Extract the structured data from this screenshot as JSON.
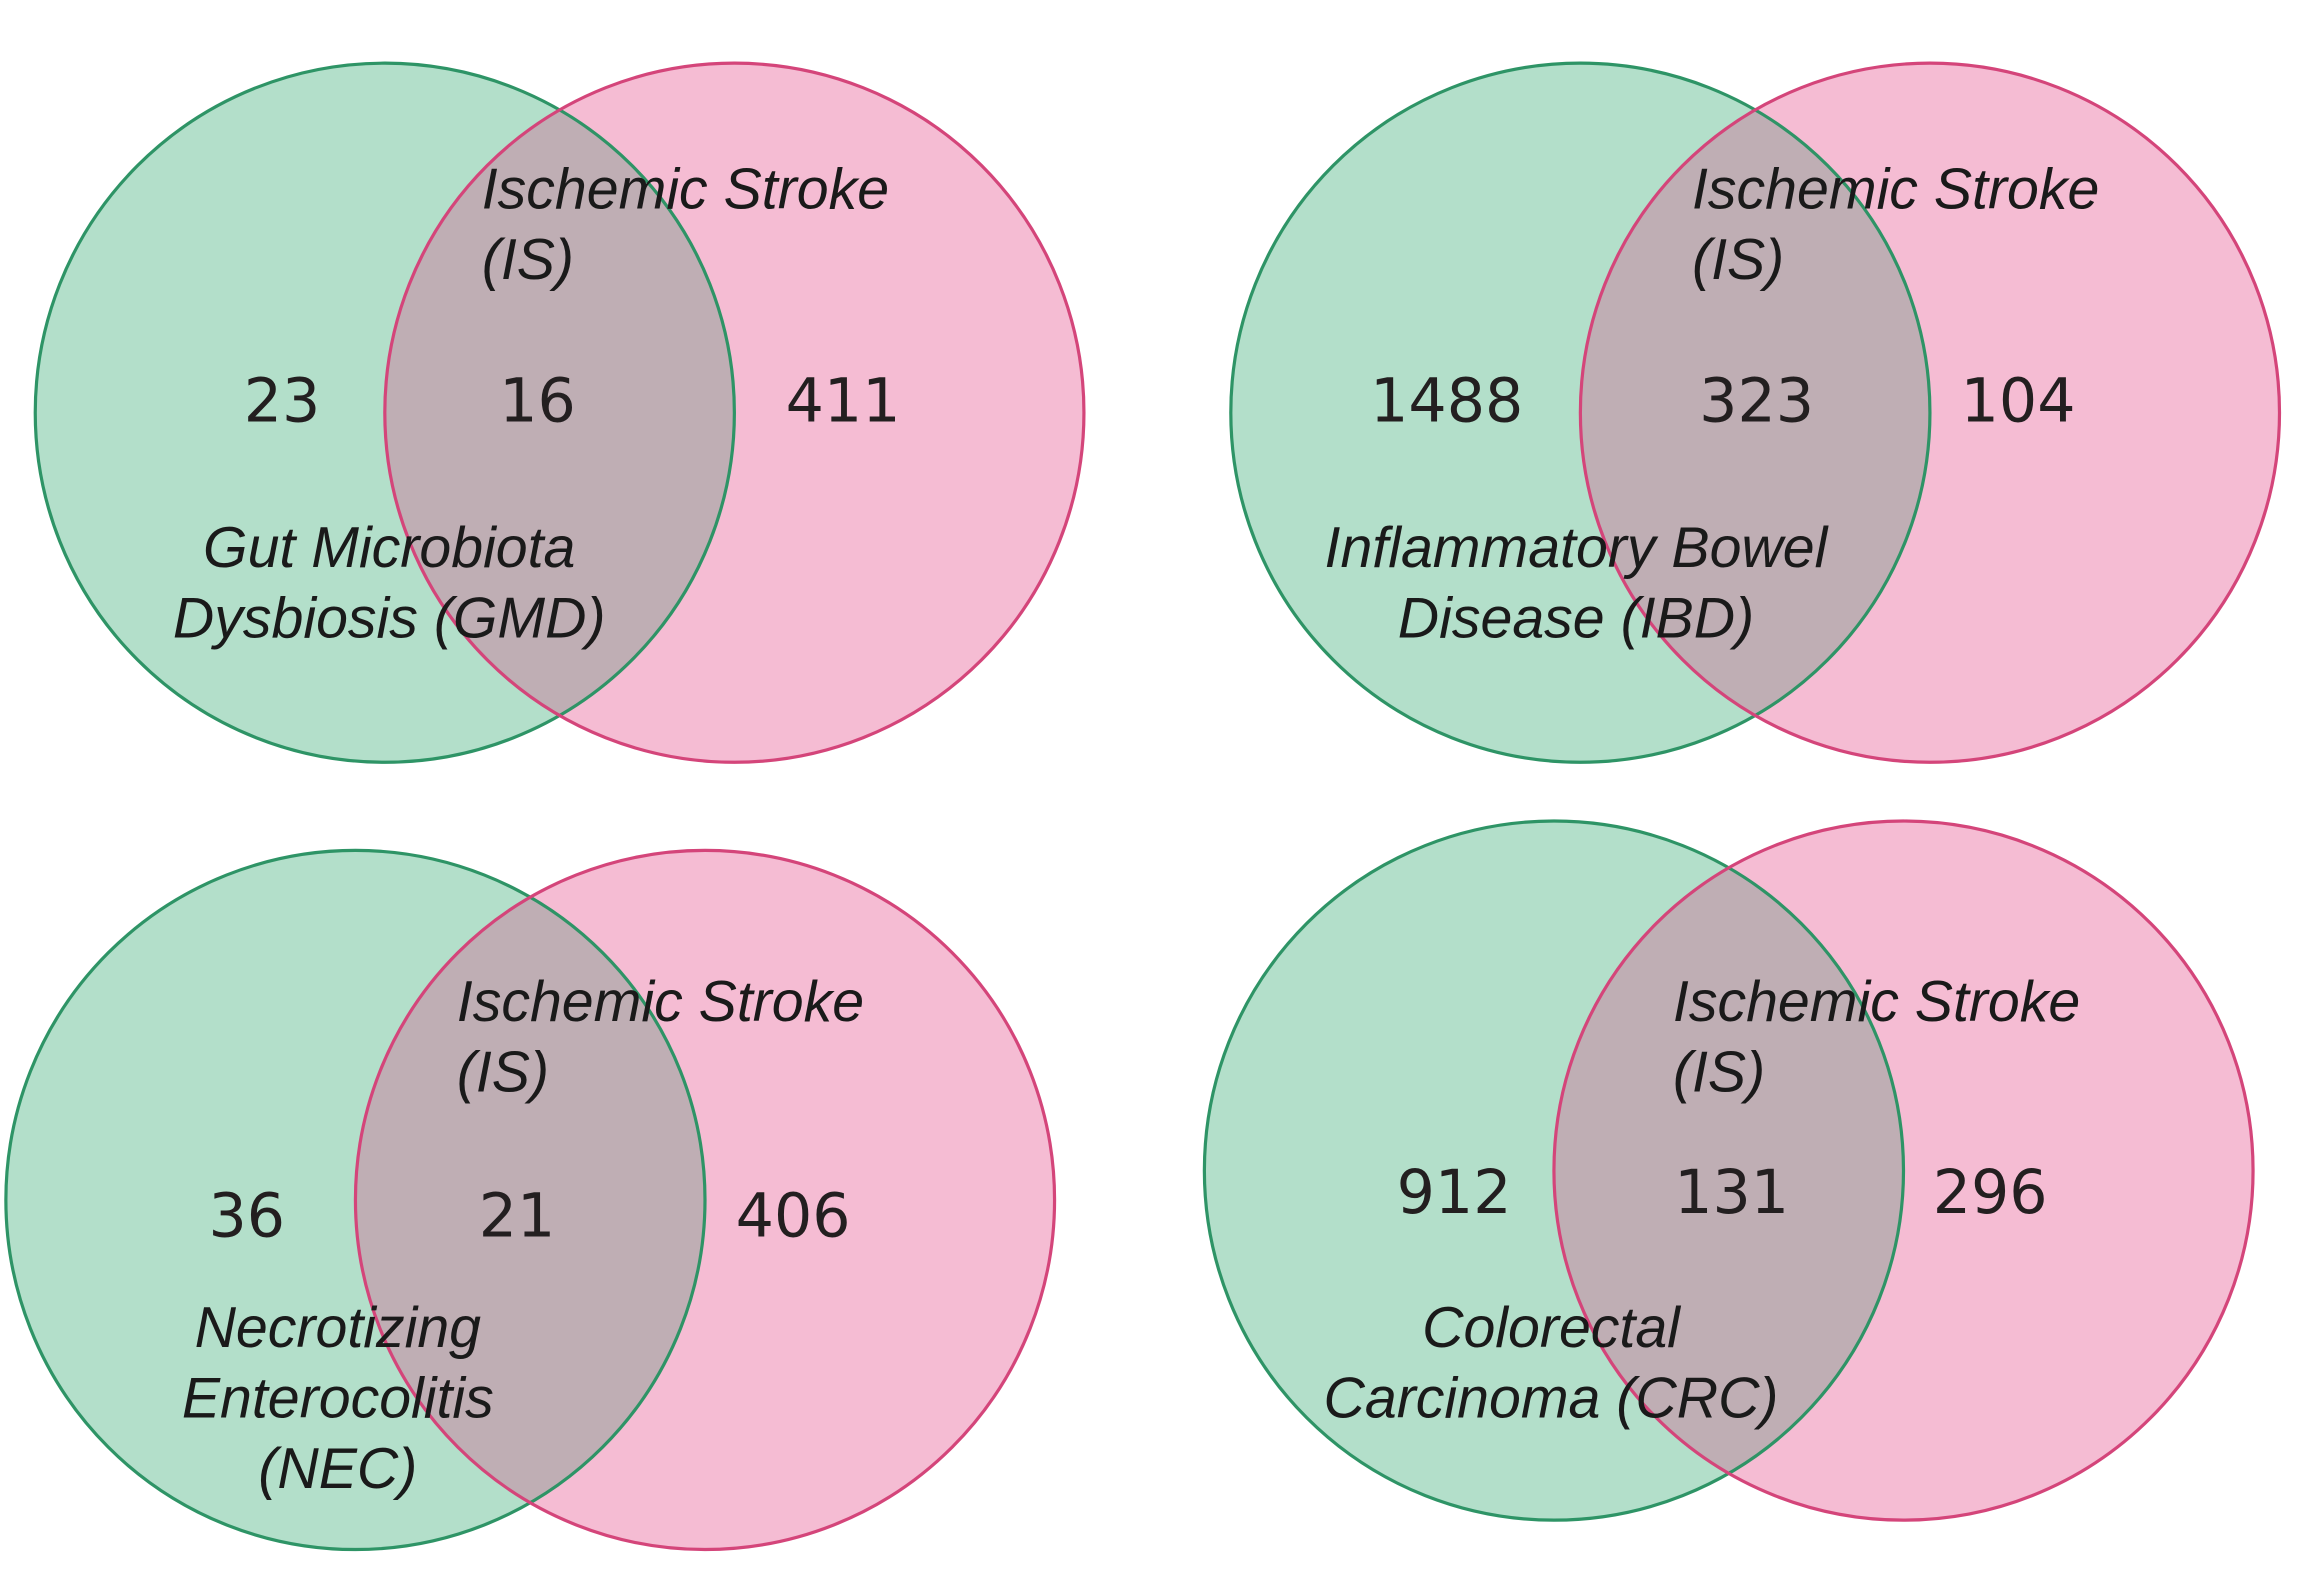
{
  "colors": {
    "left_fill": "#b3dfca",
    "left_stroke": "#2e9466",
    "right_fill": "#f5bcd3",
    "right_stroke": "#d4457a",
    "overlap_fill": "#bfaeb4"
  },
  "panels": [
    {
      "left_label": [
        "Gut Microbiota",
        "Dysbiosis (GMD)"
      ],
      "right_label": [
        "Ischemic Stroke",
        "(IS)"
      ],
      "left_only": "23",
      "overlap": "16",
      "right_only": "411"
    },
    {
      "left_label": [
        "Inflammatory Bowel",
        "Disease  (IBD)"
      ],
      "right_label": [
        "Ischemic Stroke",
        "(IS)"
      ],
      "left_only": "1488",
      "overlap": "323",
      "right_only": "104"
    },
    {
      "left_label": [
        "Necrotizing",
        "Enterocolitis",
        "(NEC)"
      ],
      "right_label": [
        "Ischemic Stroke",
        "(IS)"
      ],
      "left_only": "36",
      "overlap": "21",
      "right_only": "406"
    },
    {
      "left_label": [
        "Colorectal",
        "Carcinoma (CRC)"
      ],
      "right_label": [
        "Ischemic Stroke",
        "(IS)"
      ],
      "left_only": "912",
      "overlap": "131",
      "right_only": "296"
    }
  ]
}
